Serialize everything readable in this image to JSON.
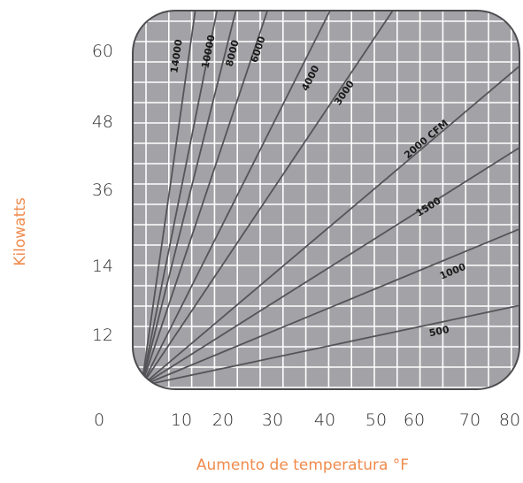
{
  "chart_data": {
    "type": "line",
    "xlabel": "Aumento de temperatura °F",
    "ylabel": "Kilowatts",
    "x_tick_labels": [
      "0",
      "10",
      "20",
      "30",
      "40",
      "50",
      "60",
      "70",
      "80"
    ],
    "y_tick_labels": [
      "60",
      "48",
      "36",
      "14",
      "12"
    ],
    "grid": true,
    "series": [
      {
        "name": "14000",
        "x": [
          0,
          11.4
        ],
        "y": [
          0,
          60
        ]
      },
      {
        "name": "10000",
        "x": [
          0,
          16
        ],
        "y": [
          0,
          60
        ]
      },
      {
        "name": "8000",
        "x": [
          0,
          20
        ],
        "y": [
          0,
          60
        ]
      },
      {
        "name": "6000",
        "x": [
          0,
          26.7
        ],
        "y": [
          0,
          60
        ]
      },
      {
        "name": "4000",
        "x": [
          0,
          40
        ],
        "y": [
          0,
          60
        ]
      },
      {
        "name": "3000",
        "x": [
          0,
          53.3
        ],
        "y": [
          0,
          60
        ]
      },
      {
        "name": "2000 CFM",
        "x": [
          0,
          80
        ],
        "y": [
          0,
          51
        ]
      },
      {
        "name": "1500",
        "x": [
          0,
          80
        ],
        "y": [
          0,
          38
        ]
      },
      {
        "name": "1000",
        "x": [
          0,
          80
        ],
        "y": [
          0,
          25
        ]
      },
      {
        "name": "500",
        "x": [
          0,
          80
        ],
        "y": [
          0,
          12.8
        ]
      }
    ]
  },
  "colors": {
    "plot_bg": "#a3a3a7",
    "grid": "#ffffff",
    "line": "#555558",
    "frame": "#4d4d50",
    "axis_label": "#f08a4b"
  }
}
